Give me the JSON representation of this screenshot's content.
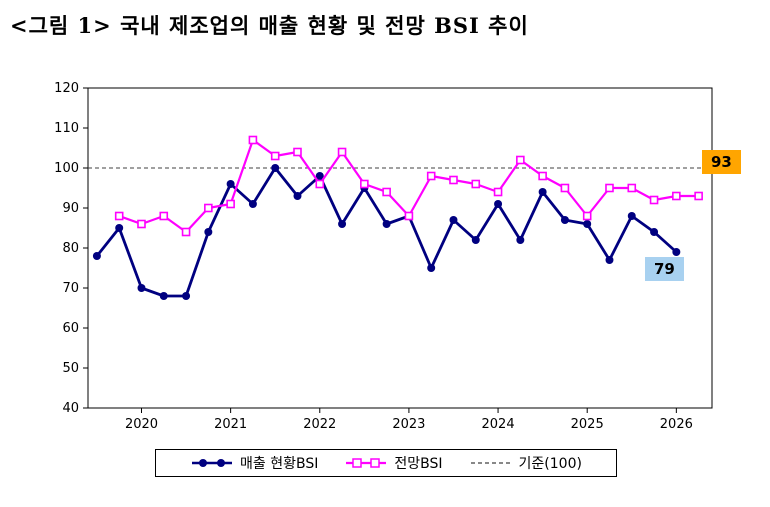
{
  "title": "<그림 1> 국내 제조업의 매출 현황 및 전망 BSI 추이",
  "chart_data": {
    "type": "line",
    "title": "국내 제조업의 매출 현황 및 전망 BSI 추이",
    "ylim": [
      40,
      120
    ],
    "y_ticks": [
      40,
      50,
      60,
      70,
      80,
      90,
      100,
      110,
      120
    ],
    "x_range": [
      2019.4,
      2026.4
    ],
    "x_ticks": [
      2020,
      2021,
      2022,
      2023,
      2024,
      2025,
      2026
    ],
    "grid": false,
    "legend_position": "bottom",
    "reference_line": {
      "label": "기준(100)",
      "value": 100,
      "color": "#404040"
    },
    "series": [
      {
        "name": "매출 현황BSI",
        "color": "#000080",
        "marker": "circle",
        "x": [
          2019.5,
          2019.75,
          2020.0,
          2020.25,
          2020.5,
          2020.75,
          2021.0,
          2021.25,
          2021.5,
          2021.75,
          2022.0,
          2022.25,
          2022.5,
          2022.75,
          2023.0,
          2023.25,
          2023.5,
          2023.75,
          2024.0,
          2024.25,
          2024.5,
          2024.75,
          2025.0,
          2025.25,
          2025.5,
          2025.75,
          2026.0
        ],
        "values": [
          78,
          85,
          70,
          68,
          68,
          84,
          96,
          91,
          100,
          93,
          98,
          86,
          95,
          86,
          88,
          75,
          87,
          82,
          91,
          82,
          94,
          87,
          86,
          77,
          88,
          84,
          79
        ]
      },
      {
        "name": "전망BSI",
        "color": "#FF00FF",
        "marker": "square",
        "x": [
          2019.75,
          2020.0,
          2020.25,
          2020.5,
          2020.75,
          2021.0,
          2021.25,
          2021.5,
          2021.75,
          2022.0,
          2022.25,
          2022.5,
          2022.75,
          2023.0,
          2023.25,
          2023.5,
          2023.75,
          2024.0,
          2024.25,
          2024.5,
          2024.75,
          2025.0,
          2025.25,
          2025.5,
          2025.75,
          2026.0,
          2026.25
        ],
        "values": [
          88,
          86,
          88,
          84,
          90,
          91,
          107,
          103,
          104,
          96,
          104,
          96,
          94,
          88,
          98,
          97,
          96,
          94,
          102,
          98,
          95,
          88,
          95,
          95,
          92,
          93,
          93
        ]
      }
    ],
    "annotations": [
      {
        "text": "93",
        "series": "전망BSI",
        "bg": "#FFA500",
        "color": "#000000"
      },
      {
        "text": "79",
        "series": "매출 현황BSI",
        "bg": "#A8D1F0",
        "color": "#000000"
      }
    ]
  },
  "legend": {
    "items": [
      "매출 현황BSI",
      "전망BSI",
      "기준(100)"
    ]
  }
}
